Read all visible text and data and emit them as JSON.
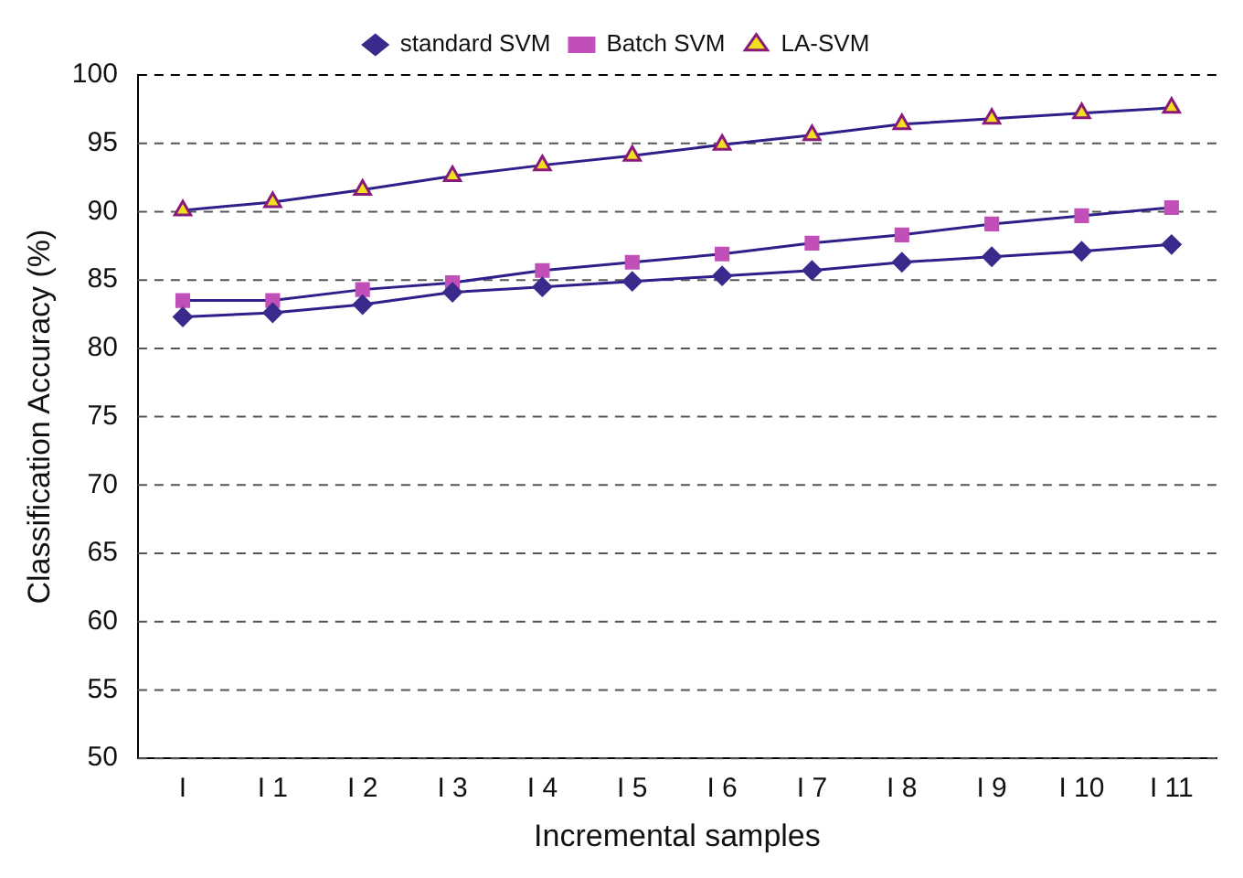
{
  "chart_data": {
    "type": "line",
    "xlabel": "Incremental samples",
    "ylabel": "Classification Accuracy (%)",
    "categories": [
      "I",
      "I 1",
      "I 2",
      "I 3",
      "I 4",
      "I 5",
      "I 6",
      "I 7",
      "I 8",
      "I 9",
      "I 10",
      "I 11"
    ],
    "series": [
      {
        "name": "standard SVM",
        "color": "#3a2a8c",
        "marker": "diamond",
        "values": [
          82.3,
          82.6,
          83.2,
          84.1,
          84.5,
          84.9,
          85.3,
          85.7,
          86.3,
          86.7,
          87.1,
          87.6
        ]
      },
      {
        "name": "Batch SVM",
        "color": "#c050b8",
        "marker": "square",
        "values": [
          83.5,
          83.5,
          84.3,
          84.8,
          85.7,
          86.3,
          86.9,
          87.7,
          88.3,
          89.1,
          89.7,
          90.3
        ]
      },
      {
        "name": "LA-SVM",
        "color": "#f0e020",
        "marker": "triangle",
        "values": [
          90.1,
          90.7,
          91.6,
          92.6,
          93.4,
          94.1,
          94.9,
          95.6,
          96.4,
          96.8,
          97.2,
          97.6
        ]
      }
    ],
    "ylim": [
      50,
      100
    ],
    "yticks": [
      50,
      55,
      60,
      65,
      70,
      75,
      80,
      85,
      90,
      95,
      100
    ],
    "grid": "y",
    "legend": "top",
    "line_style": "solid"
  }
}
